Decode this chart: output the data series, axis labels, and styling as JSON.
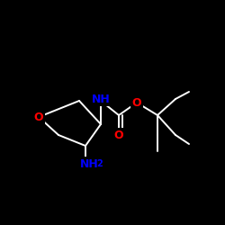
{
  "background": "#000000",
  "bond_color": "#ffffff",
  "atom_colors": {
    "N": "#0000ff",
    "O": "#ff0000",
    "C": "#ffffff",
    "H": "#ffffff"
  },
  "figsize": [
    2.5,
    2.5
  ],
  "dpi": 100,
  "lw": 1.4,
  "fontsize": 9
}
